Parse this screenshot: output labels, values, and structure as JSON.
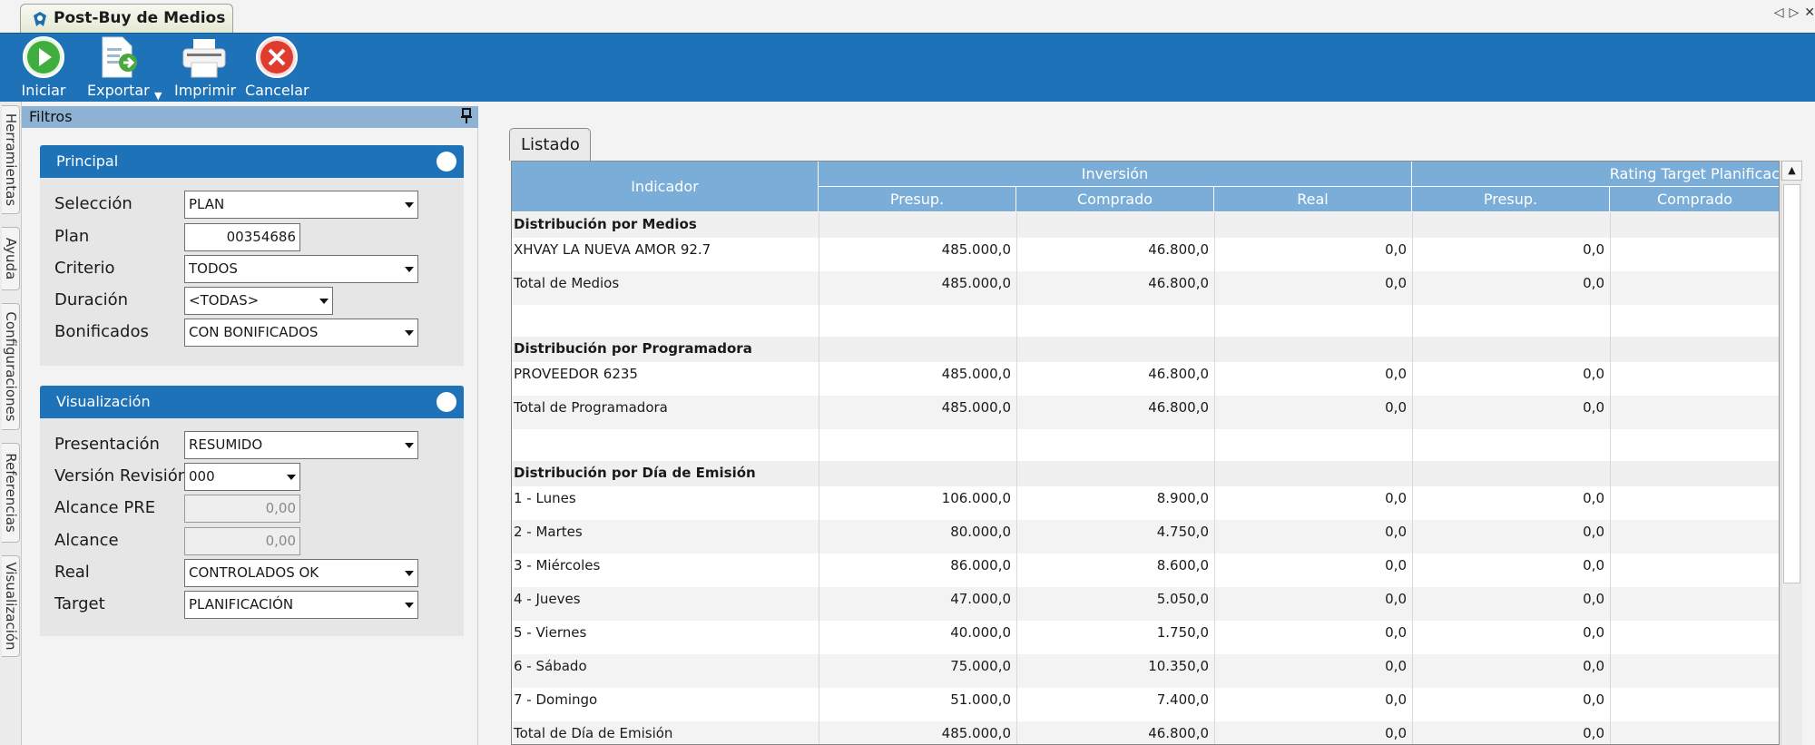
{
  "window": {
    "tab_title": "Post-Buy de Medios"
  },
  "toolbar": {
    "iniciar": "Iniciar",
    "exportar": "Exportar",
    "imprimir": "Imprimir",
    "cancelar": "Cancelar"
  },
  "side_tabs": [
    "Herramientas",
    "Ayuda",
    "Configuraciones",
    "Referencias",
    "Visualización"
  ],
  "filtros": {
    "title": "Filtros",
    "principal": {
      "title": "Principal",
      "seleccion_label": "Selección",
      "seleccion_value": "PLAN",
      "plan_label": "Plan",
      "plan_value": "00354686",
      "criterio_label": "Criterio",
      "criterio_value": "TODOS",
      "duracion_label": "Duración",
      "duracion_value": "<TODAS>",
      "bonificados_label": "Bonificados",
      "bonificados_value": "CON BONIFICADOS"
    },
    "visualizacion": {
      "title": "Visualización",
      "presentacion_label": "Presentación",
      "presentacion_value": "RESUMIDO",
      "version_label": "Versión Revisión",
      "version_value": "000",
      "alcance_pre_label": "Alcance PRE",
      "alcance_pre_value": "0,00",
      "alcance_label": "Alcance",
      "alcance_value": "0,00",
      "real_label": "Real",
      "real_value": "CONTROLADOS OK",
      "target_label": "Target",
      "target_value": "PLANIFICACIÓN"
    }
  },
  "listado": {
    "tab_label": "Listado",
    "headers": {
      "indicador": "Indicador",
      "inversion": "Inversión",
      "rating": "Rating Target Planificac",
      "presup": "Presup.",
      "comprado": "Comprado",
      "real": "Real",
      "presup2": "Presup.",
      "comprado2": "Comprado"
    },
    "rows": [
      {
        "type": "section",
        "label": "Distribución por Medios"
      },
      {
        "type": "data",
        "label": "XHVAY LA NUEVA AMOR 92.7",
        "presup": "485.000,0",
        "comprado": "46.800,0",
        "real": "0,0",
        "rpresup": "0,0"
      },
      {
        "type": "data",
        "label": "Total de Medios",
        "presup": "485.000,0",
        "comprado": "46.800,0",
        "real": "0,0",
        "rpresup": "0,0"
      },
      {
        "type": "section",
        "label": "Distribución por Programadora"
      },
      {
        "type": "data",
        "label": "PROVEEDOR 6235",
        "presup": "485.000,0",
        "comprado": "46.800,0",
        "real": "0,0",
        "rpresup": "0,0"
      },
      {
        "type": "data",
        "label": "Total de Programadora",
        "presup": "485.000,0",
        "comprado": "46.800,0",
        "real": "0,0",
        "rpresup": "0,0"
      },
      {
        "type": "section",
        "label": "Distribución por Día de Emisión"
      },
      {
        "type": "data",
        "label": "1 - Lunes",
        "presup": "106.000,0",
        "comprado": "8.900,0",
        "real": "0,0",
        "rpresup": "0,0"
      },
      {
        "type": "data",
        "label": "2 - Martes",
        "presup": "80.000,0",
        "comprado": "4.750,0",
        "real": "0,0",
        "rpresup": "0,0"
      },
      {
        "type": "data",
        "label": "3 - Miércoles",
        "presup": "86.000,0",
        "comprado": "8.600,0",
        "real": "0,0",
        "rpresup": "0,0"
      },
      {
        "type": "data",
        "label": "4 - Jueves",
        "presup": "47.000,0",
        "comprado": "5.050,0",
        "real": "0,0",
        "rpresup": "0,0"
      },
      {
        "type": "data",
        "label": "5 - Viernes",
        "presup": "40.000,0",
        "comprado": "1.750,0",
        "real": "0,0",
        "rpresup": "0,0"
      },
      {
        "type": "data",
        "label": "6 - Sábado",
        "presup": "75.000,0",
        "comprado": "10.350,0",
        "real": "0,0",
        "rpresup": "0,0"
      },
      {
        "type": "data",
        "label": "7 - Domingo",
        "presup": "51.000,0",
        "comprado": "7.400,0",
        "real": "0,0",
        "rpresup": "0,0"
      },
      {
        "type": "data",
        "label": "Total de Día de Emisión",
        "presup": "485.000,0",
        "comprado": "46.800,0",
        "real": "0,0",
        "rpresup": "0,0"
      }
    ]
  },
  "colors": {
    "toolbar": "#1e73b8",
    "header": "#7aaed8",
    "section_bg": "#f0f0f0"
  },
  "icons": {
    "iniciar": "play-icon",
    "exportar": "export-icon",
    "imprimir": "printer-icon",
    "cancelar": "cancel-icon"
  }
}
